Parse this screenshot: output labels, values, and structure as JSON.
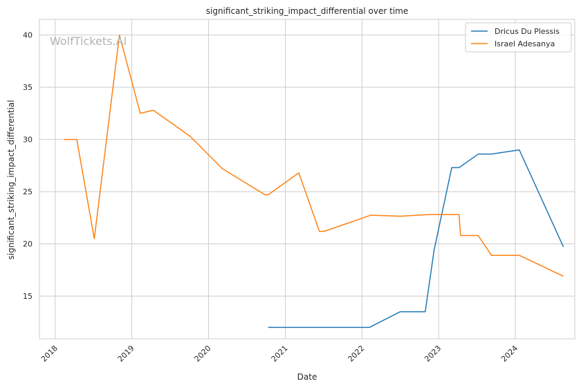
{
  "chart_data": {
    "type": "line",
    "title": "significant_striking_impact_differential over time",
    "xlabel": "Date",
    "ylabel": "significant_striking_impact_differential",
    "watermark": "WolfTickets.AI",
    "x_ticks": [
      "2018",
      "2019",
      "2020",
      "2021",
      "2022",
      "2023",
      "2024"
    ],
    "y_ticks": [
      15,
      20,
      25,
      30,
      35,
      40
    ],
    "xlim": [
      "2017-10-18",
      "2024-10-10"
    ],
    "ylim": [
      10.9,
      41.5
    ],
    "grid": true,
    "legend_position": "top-right",
    "series": [
      {
        "name": "Dricus Du Plessis",
        "color": "#1f77b4",
        "points": [
          [
            "2020-10-11",
            12.0
          ],
          [
            "2021-09-01",
            12.0
          ],
          [
            "2022-02-05",
            12.0
          ],
          [
            "2022-07-02",
            13.5
          ],
          [
            "2022-10-29",
            13.5
          ],
          [
            "2022-12-10",
            19.4
          ],
          [
            "2023-03-04",
            27.3
          ],
          [
            "2023-04-08",
            27.3
          ],
          [
            "2023-07-08",
            28.6
          ],
          [
            "2023-09-09",
            28.6
          ],
          [
            "2024-01-20",
            29.0
          ],
          [
            "2024-08-17",
            19.7
          ]
        ]
      },
      {
        "name": "Israel Adesanya",
        "color": "#ff7f0e",
        "points": [
          [
            "2018-02-11",
            30.0
          ],
          [
            "2018-04-14",
            30.0
          ],
          [
            "2018-07-06",
            20.5
          ],
          [
            "2018-11-03",
            40.0
          ],
          [
            "2019-02-10",
            32.5
          ],
          [
            "2019-04-13",
            32.8
          ],
          [
            "2019-10-06",
            30.3
          ],
          [
            "2020-03-07",
            27.2
          ],
          [
            "2020-09-26",
            24.7
          ],
          [
            "2020-10-11",
            24.7
          ],
          [
            "2021-03-06",
            26.8
          ],
          [
            "2021-06-12",
            21.2
          ],
          [
            "2021-07-05",
            21.2
          ],
          [
            "2022-02-12",
            22.75
          ],
          [
            "2022-07-02",
            22.65
          ],
          [
            "2022-11-12",
            22.8
          ],
          [
            "2023-04-08",
            22.8
          ],
          [
            "2023-04-15",
            20.8
          ],
          [
            "2023-07-08",
            20.8
          ],
          [
            "2023-09-09",
            18.9
          ],
          [
            "2024-01-20",
            18.9
          ],
          [
            "2024-08-17",
            16.9
          ]
        ]
      }
    ]
  }
}
